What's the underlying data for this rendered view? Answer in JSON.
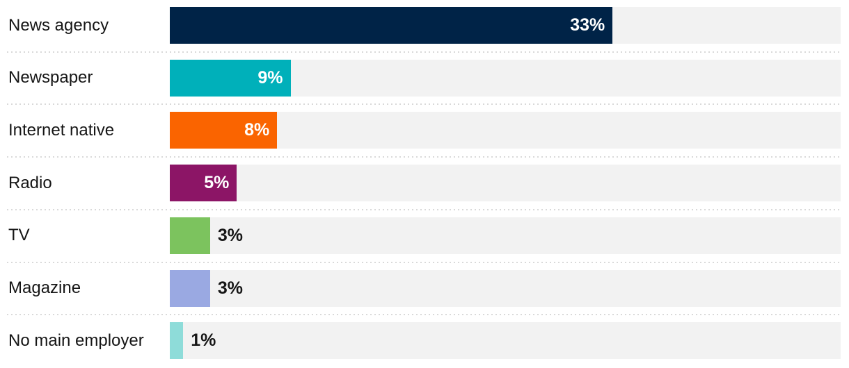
{
  "chart_data": {
    "type": "bar",
    "orientation": "horizontal",
    "title": "",
    "categories": [
      "News agency",
      "Newspaper",
      "Internet native",
      "Radio",
      "TV",
      "Magazine",
      "No main employer"
    ],
    "values": [
      33,
      9,
      8,
      5,
      3,
      3,
      1
    ],
    "value_labels": [
      "33%",
      "9%",
      "8%",
      "5%",
      "3%",
      "3%",
      "1%"
    ],
    "value_suffix": "%",
    "xlim": [
      0,
      50
    ],
    "grid": false,
    "legend": false,
    "bar_colors": [
      "#002347",
      "#00b0ba",
      "#fa6400",
      "#8c1566",
      "#7cc35e",
      "#9aa9e2",
      "#8edcd9"
    ],
    "label_inside": [
      true,
      true,
      true,
      true,
      false,
      false,
      false
    ],
    "track_color": "#f2f2f2",
    "separator_color": "#d9d9d9",
    "category_text_color": "#161616",
    "value_text_color_inside": "#ffffff",
    "value_text_color_outside": "#161616",
    "background_color": "#ffffff"
  }
}
